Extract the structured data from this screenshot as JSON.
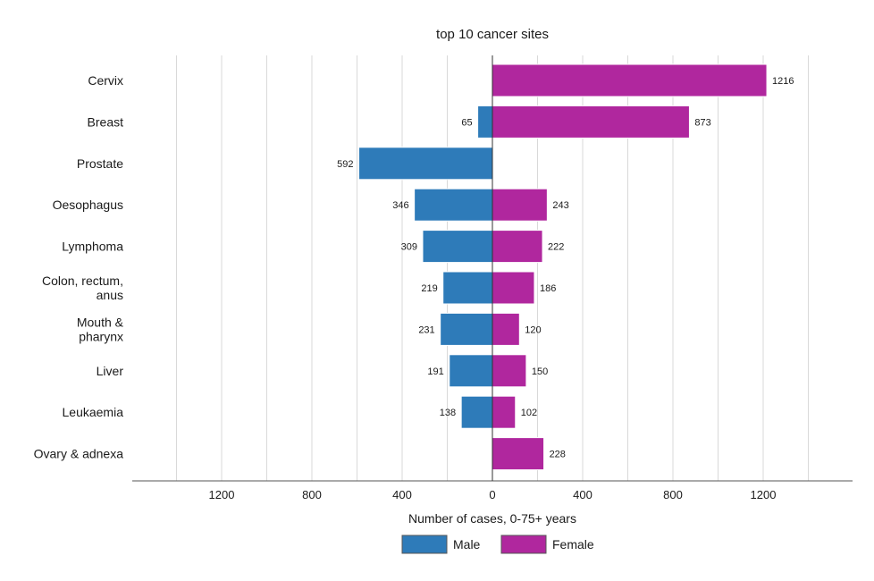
{
  "chart_data": {
    "type": "bar",
    "orientation": "horizontal-diverging",
    "title": "top 10 cancer sites",
    "xlabel": "Number of cases, 0-75+ years",
    "ylabel": "",
    "categories": [
      [
        "Cervix"
      ],
      [
        "Breast"
      ],
      [
        "Prostate"
      ],
      [
        "Oesophagus"
      ],
      [
        "Lymphoma"
      ],
      [
        "Colon, rectum,",
        "anus"
      ],
      [
        "Mouth &",
        "pharynx"
      ],
      [
        "Liver"
      ],
      [
        "Leukaemia"
      ],
      [
        "Ovary & adnexa"
      ]
    ],
    "series": [
      {
        "name": "Male",
        "color": "#2e7bb9",
        "direction": "left",
        "values": [
          null,
          65,
          592,
          346,
          309,
          219,
          231,
          191,
          138,
          null
        ]
      },
      {
        "name": "Female",
        "color": "#b0279e",
        "direction": "right",
        "values": [
          1216,
          873,
          null,
          243,
          222,
          186,
          120,
          150,
          102,
          228
        ]
      }
    ],
    "xlim": [
      -1600,
      1600
    ],
    "tick_values": [
      -1200,
      -800,
      -400,
      0,
      400,
      800,
      1200
    ],
    "tick_labels": [
      "1200",
      "800",
      "400",
      "0",
      "400",
      "800",
      "1200"
    ],
    "grid_step": 200,
    "grid": true,
    "legend_position": "bottom"
  }
}
